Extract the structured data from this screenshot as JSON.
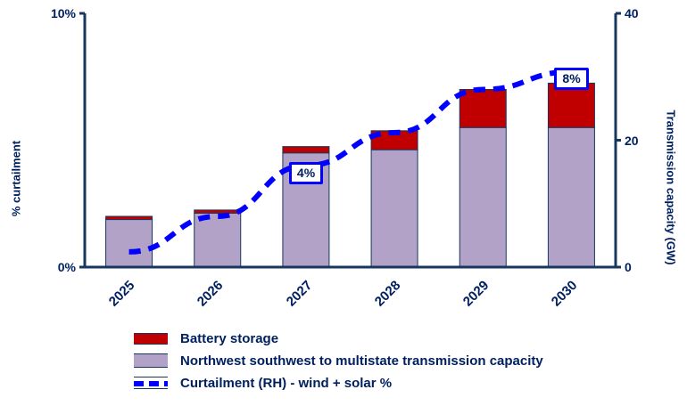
{
  "chart_data": {
    "type": "bar",
    "subtype": "stacked-bars-with-line",
    "categories": [
      "2025",
      "2026",
      "2027",
      "2028",
      "2029",
      "2030"
    ],
    "series": [
      {
        "name": "Battery storage",
        "type": "bar",
        "axis": "right",
        "color": "#C00000",
        "values": [
          0.5,
          0.5,
          1,
          3,
          6,
          7
        ]
      },
      {
        "name": "Northwest southwest to multistate transmission capacity",
        "type": "bar",
        "axis": "right",
        "color": "#B2A2C7",
        "values": [
          7.5,
          8.5,
          18,
          18.5,
          22,
          22
        ]
      },
      {
        "name": "Curtailment (RH) - wind + solar %",
        "type": "line",
        "axis": "left",
        "color": "#0000FF",
        "dashed": true,
        "values": [
          0.6,
          2,
          4,
          5.3,
          7,
          7.7
        ]
      }
    ],
    "left_axis": {
      "label": "% curtailment",
      "range": [
        0,
        10
      ],
      "ticks": [
        {
          "value": 10,
          "text": "10%"
        },
        {
          "value": 0,
          "text": "0%"
        }
      ]
    },
    "right_axis": {
      "label": "Transmission capacity (GW)",
      "range": [
        0,
        40
      ],
      "ticks": [
        {
          "value": 40,
          "text": "40"
        },
        {
          "value": 20,
          "text": "20"
        },
        {
          "value": 0,
          "text": "0"
        }
      ]
    },
    "annotations": [
      {
        "text": "4%",
        "category_index": 2
      },
      {
        "text": "8%",
        "category_index": 5
      }
    ],
    "title": "",
    "grid": false,
    "legend_position": "bottom-left"
  },
  "colors": {
    "battery": "#C00000",
    "transmission": "#B2A2C7",
    "curtailment_line": "#0000FF",
    "text": "#002060",
    "axis": "#17375E",
    "callout_border": "#0000FF",
    "callout_bg": "#FFFFFF"
  }
}
